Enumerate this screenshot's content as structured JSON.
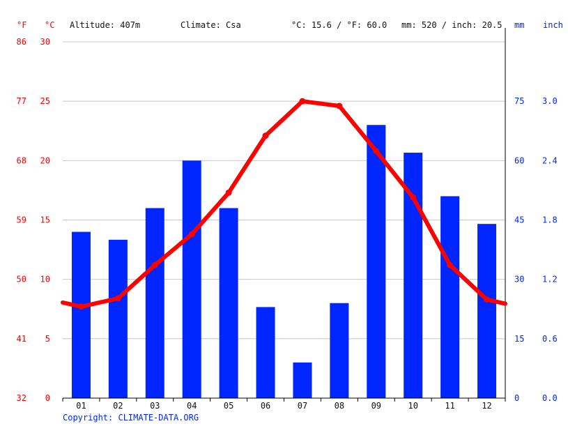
{
  "header": {
    "unit_f": "°F",
    "unit_c": "°C",
    "altitude": "Altitude: 407m",
    "climate": "Climate: Csa",
    "temp_avg": "°C: 15.6 / °F: 60.0",
    "precip_total": "mm: 520 / inch: 20.5",
    "unit_mm": "mm",
    "unit_inch": "inch"
  },
  "footer": {
    "copyright": "Copyright: CLIMATE-DATA.ORG"
  },
  "colors": {
    "temperature": "#ff0000",
    "precipitation": "#0026ff",
    "grid": "#c8c8c8"
  },
  "chart_data": {
    "type": "bar",
    "categories": [
      "01",
      "02",
      "03",
      "04",
      "05",
      "06",
      "07",
      "08",
      "09",
      "10",
      "11",
      "12"
    ],
    "series": [
      {
        "type": "bar",
        "axis": "right",
        "values": [
          42,
          40,
          48,
          60,
          48,
          23,
          9,
          24,
          69,
          62,
          51,
          44
        ]
      },
      {
        "type": "line",
        "axis": "left",
        "values": [
          7.7,
          8.4,
          11.2,
          13.8,
          17.3,
          22.1,
          25.0,
          24.6,
          20.8,
          16.9,
          11.2,
          8.3
        ]
      }
    ],
    "y_left": {
      "ticks": [
        0,
        5,
        10,
        15,
        20,
        25,
        30
      ],
      "range": [
        0,
        30
      ]
    },
    "y_left_f": {
      "ticks": [
        "32",
        "41",
        "50",
        "59",
        "68",
        "77",
        "86"
      ]
    },
    "y_right": {
      "ticks": [
        0,
        15,
        30,
        45,
        60,
        75
      ],
      "range": [
        0,
        90
      ]
    },
    "y_right_inch": {
      "ticks": [
        "0.0",
        "0.6",
        "1.2",
        "1.8",
        "2.4",
        "3.0"
      ]
    },
    "grid": true
  }
}
